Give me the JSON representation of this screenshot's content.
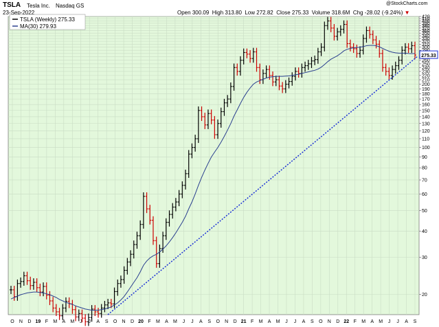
{
  "header": {
    "ticker": "TSLA",
    "name": "Tesla Inc.",
    "exchange": "Nasdaq GS",
    "date": "23-Sep-2022",
    "watermark": "@StockCharts.com",
    "stats": {
      "open_label": "Open",
      "open": "300.09",
      "high_label": "High",
      "high": "313.80",
      "low_label": "Low",
      "low": "272.82",
      "close_label": "Close",
      "close": "275.33",
      "volume_label": "Volume",
      "volume": "318.6M",
      "chg_label": "Chg",
      "chg": "-28.02 (-9.24%)",
      "chg_arrow": "▼"
    }
  },
  "legend": {
    "price": "TSLA (Weekly) 275.33",
    "ma": "MA(30) 279.93"
  },
  "price_tag": "275.33",
  "colors": {
    "plot_bg": "#e3f8dc",
    "up_bar": "#000000",
    "down_bar": "#cc0000",
    "ma_line": "#2a3f8f",
    "trend_line": "#1a2fd6",
    "chg_negative": "#cc0000",
    "tag_border": "#1a2fd6"
  },
  "chart_data": {
    "type": "ohlc",
    "scale": "log",
    "ylim": [
      16,
      420
    ],
    "y_ticks": [
      20,
      30,
      40,
      50,
      60,
      70,
      80,
      90,
      100,
      110,
      120,
      130,
      140,
      150,
      160,
      170,
      180,
      190,
      200,
      210,
      220,
      230,
      240,
      250,
      260,
      270,
      280,
      290,
      300,
      310,
      320,
      330,
      340,
      350,
      360,
      370,
      380,
      390,
      400,
      410,
      420
    ],
    "y_tick_labels_shown": [
      20,
      30,
      40,
      50,
      60,
      70,
      80,
      90,
      100,
      110,
      120,
      130,
      140,
      150,
      160,
      170,
      180,
      190,
      200,
      210,
      220,
      230,
      240,
      250,
      260,
      270,
      280,
      290,
      300,
      310,
      320,
      330,
      340,
      350,
      360,
      370,
      380,
      390,
      400,
      410,
      420
    ],
    "x_labels": [
      "O",
      "N",
      "D",
      "19",
      "F",
      "M",
      "A",
      "M",
      "J",
      "J",
      "A",
      "S",
      "O",
      "N",
      "D",
      "20",
      "F",
      "M",
      "A",
      "M",
      "J",
      "J",
      "A",
      "S",
      "O",
      "N",
      "D",
      "21",
      "F",
      "M",
      "A",
      "M",
      "J",
      "J",
      "A",
      "S",
      "O",
      "N",
      "D",
      "22",
      "F",
      "M",
      "A",
      "M",
      "J",
      "J",
      "A",
      "S"
    ],
    "x_year_labels": [
      "19",
      "20",
      "21",
      "22"
    ],
    "series_close": [
      21.0,
      19.5,
      22.5,
      23.0,
      24.5,
      23.2,
      22.0,
      22.8,
      21.5,
      20.5,
      21.8,
      19.8,
      18.6,
      17.2,
      16.5,
      15.8,
      17.2,
      18.5,
      18.0,
      16.9,
      15.6,
      16.2,
      15.4,
      14.8,
      15.5,
      17.0,
      16.5,
      16.2,
      17.2,
      17.8,
      18.2,
      18.0,
      20.6,
      22.5,
      23.5,
      26.0,
      28.5,
      31.0,
      34.5,
      38.0,
      43.0,
      58.5,
      51.0,
      45.0,
      36.0,
      28.0,
      33.0,
      38.0,
      44.0,
      48.0,
      52.0,
      55.0,
      60.0,
      66.0,
      75.0,
      93.0,
      100.0,
      110.0,
      150.0,
      140.0,
      128.0,
      145.0,
      135.0,
      115.0,
      130.0,
      148.0,
      163.0,
      170.0,
      195.0,
      240.0,
      230.0,
      260.0,
      283.0,
      278.0,
      265.0,
      285.0,
      240.0,
      210.0,
      225.0,
      235.0,
      220.0,
      205.0,
      210.0,
      196.0,
      190.0,
      200.0,
      206.0,
      218.0,
      230.0,
      225.0,
      240.0,
      245.0,
      250.0,
      258.0,
      262.0,
      285.0,
      300.0,
      380.0,
      400.0,
      370.0,
      338.0,
      355.0,
      365.0,
      385.0,
      312.0,
      300.0,
      295.0,
      280.0,
      290.0,
      330.0,
      360.0,
      345.0,
      325.0,
      310.0,
      280.0,
      240.0,
      230.0,
      220.0,
      235.0,
      245.0,
      260.0,
      290.0,
      300.0,
      295.0,
      305.0,
      275.33
    ],
    "series_ma30": [
      19.0,
      19.3,
      19.6,
      19.9,
      20.1,
      20.3,
      20.4,
      20.5,
      20.5,
      20.4,
      20.3,
      20.1,
      19.9,
      19.6,
      19.3,
      18.9,
      18.6,
      18.3,
      18.1,
      17.9,
      17.6,
      17.4,
      17.2,
      17.0,
      16.9,
      16.8,
      16.8,
      16.8,
      16.9,
      17.0,
      17.2,
      17.4,
      17.8,
      18.2,
      18.8,
      19.5,
      20.5,
      21.6,
      22.8,
      24.0,
      25.6,
      27.5,
      28.8,
      29.8,
      30.5,
      31.0,
      31.8,
      32.8,
      34.0,
      35.5,
      37.2,
      39.2,
      41.5,
      44.0,
      47.0,
      51.0,
      55.0,
      60.0,
      66.0,
      72.0,
      78.0,
      84.0,
      90.0,
      95.0,
      100.0,
      106.0,
      113.0,
      121.0,
      130.0,
      141.0,
      151.0,
      162.0,
      173.0,
      183.0,
      192.0,
      200.0,
      205.0,
      208.0,
      211.0,
      214.0,
      216.0,
      217.0,
      218.0,
      218.0,
      218.0,
      218.5,
      219.0,
      220.0,
      222.0,
      223.0,
      225.0,
      227.0,
      229.0,
      231.0,
      233.0,
      236.0,
      241.0,
      248.0,
      256.0,
      263.0,
      268.0,
      273.0,
      280.0,
      288.0,
      293.0,
      296.0,
      298.0,
      299.0,
      300.0,
      302.0,
      305.0,
      306.0,
      306.0,
      305.0,
      301.0,
      296.0,
      291.0,
      287.0,
      284.0,
      282.0,
      281.0,
      281.0,
      281.0,
      280.0,
      279.5,
      279.93
    ],
    "trendline": {
      "start": {
        "x_label": "S",
        "y": 16.0
      },
      "end": {
        "x_label": "S",
        "y": 270.0
      }
    }
  }
}
